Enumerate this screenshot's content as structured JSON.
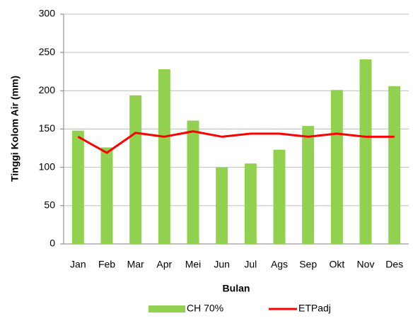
{
  "chart_data": {
    "type": "bar",
    "xlabel": "Bulan",
    "ylabel": "Tinggi Kolom Air (mm)",
    "categories": [
      "Jan",
      "Feb",
      "Mar",
      "Apr",
      "Mei",
      "Jun",
      "Jul",
      "Ags",
      "Sep",
      "Okt",
      "Nov",
      "Des"
    ],
    "series": [
      {
        "name": "CH 70%",
        "type": "bar",
        "color": "#92d050",
        "values": [
          148,
          126,
          194,
          228,
          161,
          100,
          105,
          123,
          154,
          201,
          241,
          206
        ]
      },
      {
        "name": "ETPadj",
        "type": "line",
        "color": "#ff0000",
        "values": [
          140,
          119,
          145,
          140,
          147,
          140,
          144,
          144,
          140,
          144,
          140,
          140
        ]
      }
    ],
    "ylim": [
      0,
      300
    ],
    "yticks": [
      0,
      50,
      100,
      150,
      200,
      250,
      300
    ],
    "grid": true,
    "legend": "bottom"
  }
}
